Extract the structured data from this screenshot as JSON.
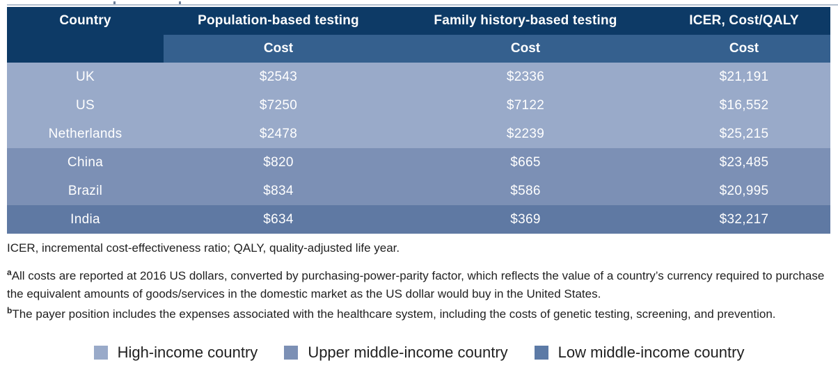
{
  "table": {
    "header": {
      "country": "Country",
      "col2": "Population-based testing",
      "col3": "Family history-based testing",
      "col4": "ICER, Cost/QALY",
      "sub_label": "Cost"
    },
    "colors": {
      "header_bg": "#0d3a66",
      "subheader_bg": "#35608e",
      "high": "#99aac9",
      "upper": "#7c90b5",
      "low": "#5f79a3"
    },
    "rows": [
      {
        "country": "UK",
        "population_cost": "$2543",
        "family_cost": "$2336",
        "icer_cost": "$21,191",
        "income_group": "high"
      },
      {
        "country": "US",
        "population_cost": "$7250",
        "family_cost": "$7122",
        "icer_cost": "$16,552",
        "income_group": "high"
      },
      {
        "country": "Netherlands",
        "population_cost": "$2478",
        "family_cost": "$2239",
        "icer_cost": "$25,215",
        "income_group": "high"
      },
      {
        "country": "China",
        "population_cost": "$820",
        "family_cost": "$665",
        "icer_cost": "$23,485",
        "income_group": "upper"
      },
      {
        "country": "Brazil",
        "population_cost": "$834",
        "family_cost": "$586",
        "icer_cost": "$20,995",
        "income_group": "upper"
      },
      {
        "country": "India",
        "population_cost": "$634",
        "family_cost": "$369",
        "icer_cost": "$32,217",
        "income_group": "low"
      }
    ]
  },
  "footnotes": {
    "abbreviations": "ICER, incremental cost-effectiveness ratio; QALY, quality-adjusted life year.",
    "a": {
      "marker": "a",
      "text": "All costs are reported at 2016 US dollars, converted by purchasing-power-parity factor, which reflects the value of a country’s currency required to purchase the equivalent amounts of goods/services in the domestic market as the US dollar would buy in the United States."
    },
    "b": {
      "marker": "b",
      "text": "The payer position includes the expenses associated with the healthcare system, including the costs of genetic testing, screening, and prevention."
    }
  },
  "legend": {
    "items": [
      {
        "label": "High-income country",
        "color": "#99aac9"
      },
      {
        "label": "Upper middle-income country",
        "color": "#7c90b5"
      },
      {
        "label": "Low middle-income country",
        "color": "#5c7aa6"
      }
    ]
  },
  "chart_data": {
    "type": "table",
    "columns": [
      "Country",
      "Population-based testing — Cost",
      "Family history-based testing — Cost",
      "ICER, Cost/QALY — Cost"
    ],
    "rows": [
      [
        "UK",
        "$2543",
        "$2336",
        "$21,191"
      ],
      [
        "US",
        "$7250",
        "$7122",
        "$16,552"
      ],
      [
        "Netherlands",
        "$2478",
        "$2239",
        "$25,215"
      ],
      [
        "China",
        "$820",
        "$665",
        "$23,485"
      ],
      [
        "Brazil",
        "$834",
        "$586",
        "$20,995"
      ],
      [
        "India",
        "$634",
        "$369",
        "$32,217"
      ]
    ],
    "row_group_labels": [
      "high-income",
      "high-income",
      "high-income",
      "upper middle-income",
      "upper middle-income",
      "low middle-income"
    ]
  }
}
